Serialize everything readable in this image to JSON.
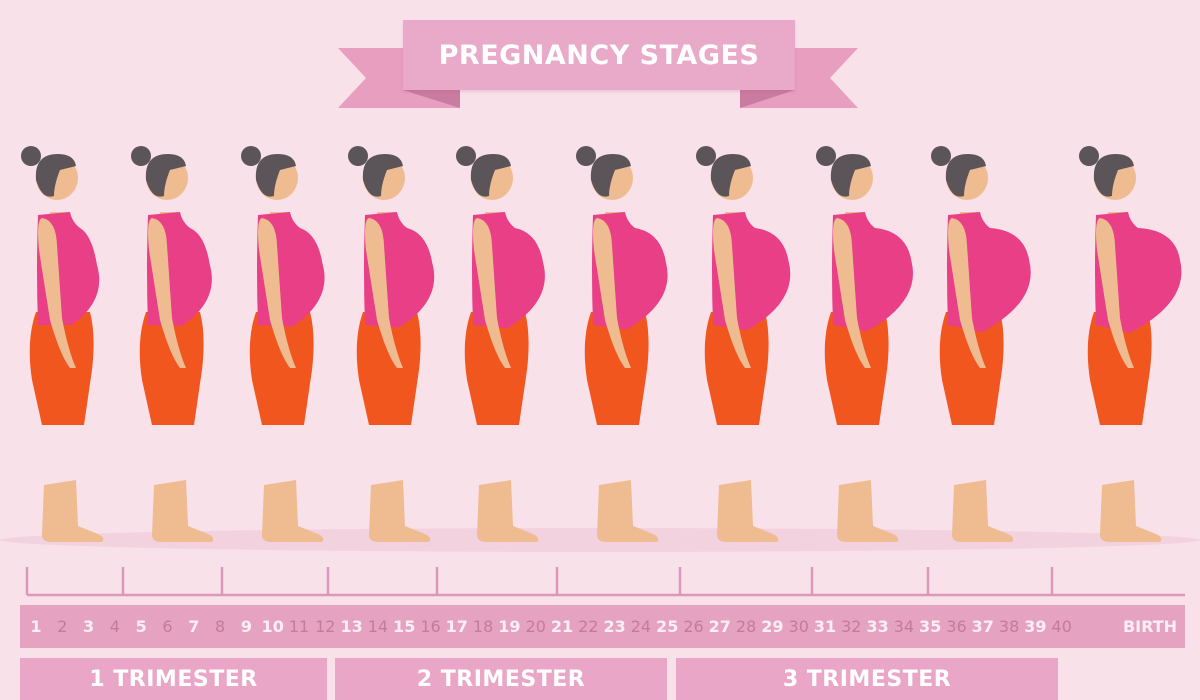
{
  "title": "PREGNANCY STAGES",
  "weeks": [
    "1",
    "2",
    "3",
    "4",
    "5",
    "6",
    "7",
    "8",
    "9",
    "10",
    "11",
    "12",
    "13",
    "14",
    "15",
    "16",
    "17",
    "18",
    "19",
    "20",
    "21",
    "22",
    "23",
    "24",
    "25",
    "26",
    "27",
    "28",
    "29",
    "30",
    "31",
    "32",
    "33",
    "34",
    "35",
    "36",
    "37",
    "38",
    "39",
    "40"
  ],
  "birth_label": "BIRTH",
  "trimesters": [
    "1 TRIMESTER",
    "2 TRIMESTER",
    "3 TRIMESTER"
  ],
  "figure_count": 10,
  "colors": {
    "background": "#f9e1ea",
    "banner": "#e9a9c8",
    "hair": "#5b5559",
    "skin": "#efbb91",
    "top": "#e83f86",
    "shorts": "#f2561f"
  }
}
